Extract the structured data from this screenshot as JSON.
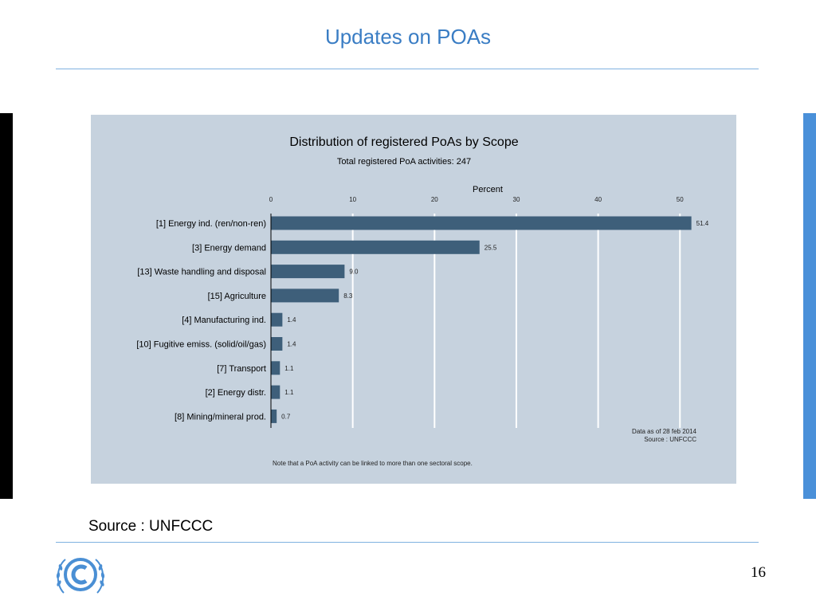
{
  "slide": {
    "title": "Updates on POAs",
    "source": "Source : UNFCCC",
    "page_number": "16"
  },
  "colors": {
    "title": "#3a7dc4",
    "rule": "#7fb2e0",
    "chart_background": "#c6d2de",
    "bar": "#3e5f7a",
    "left_bar": "#000000",
    "right_bar": "#4a90d9"
  },
  "logo": {
    "icon": "unfccc-emblem-icon"
  },
  "chart_data": {
    "type": "bar",
    "orientation": "horizontal",
    "title": "Distribution of registered PoAs by Scope",
    "subtitle": "Total registered PoA activities: 247",
    "xlabel": "Percent",
    "xlim": [
      0,
      52.8
    ],
    "xticks": [
      "0",
      "10",
      "20",
      "30",
      "40",
      "50"
    ],
    "xtick_values": [
      0,
      10,
      20,
      30,
      40,
      50
    ],
    "grid": true,
    "categories": [
      "[1] Energy ind. (ren/non-ren)",
      "[3] Energy demand",
      "[13] Waste handling and disposal",
      "[15] Agriculture",
      "[4] Manufacturing ind.",
      "[10] Fugitive emiss. (solid/oil/gas)",
      "[7] Transport",
      "[2] Energy distr.",
      "[8] Mining/mineral prod."
    ],
    "values": [
      51.4,
      25.5,
      9.0,
      8.3,
      1.4,
      1.4,
      1.1,
      1.1,
      0.7
    ],
    "value_labels": [
      "51.4",
      "25.5",
      "9.0",
      "8.3",
      "1.4",
      "1.4",
      "1.1",
      "1.1",
      "0.7"
    ],
    "annotation_date": "Data as of 28 feb 2014",
    "annotation_source": "Source : UNFCCC",
    "note": "Note that a PoA activity can be linked to more than one sectoral scope."
  }
}
